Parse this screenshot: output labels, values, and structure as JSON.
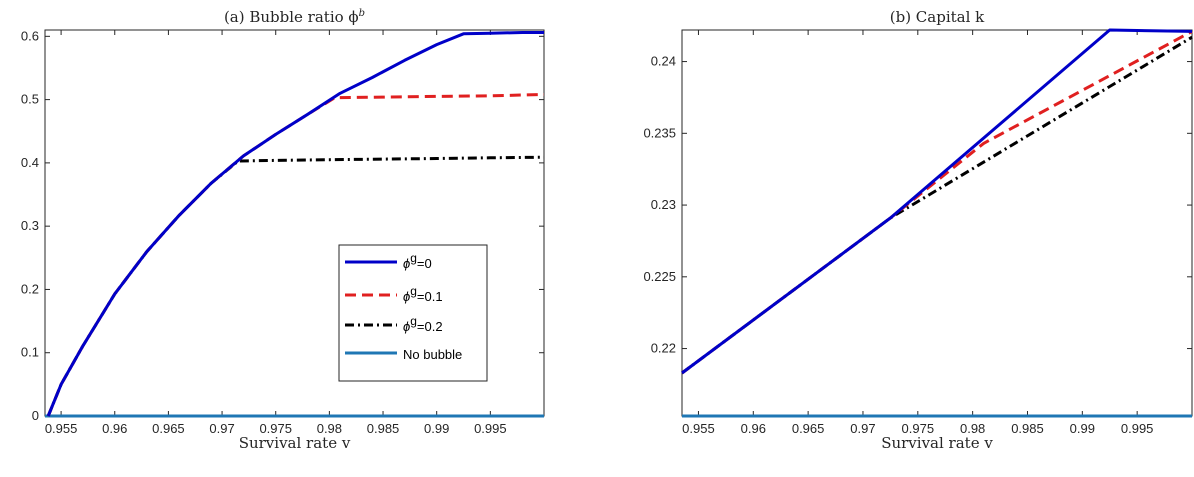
{
  "chart_data": [
    {
      "type": "line",
      "title": "(a) Bubble ratio ϕ",
      "title_sup": "b",
      "xlabel": "Survival rate v",
      "ylabel": "",
      "xlim": [
        0.9535,
        1.0
      ],
      "ylim": [
        0,
        0.61
      ],
      "xticks": [
        0.955,
        0.96,
        0.965,
        0.97,
        0.975,
        0.98,
        0.985,
        0.99,
        0.995
      ],
      "xtick_labels": [
        "0.955",
        "0.96",
        "0.965",
        "0.97",
        "0.975",
        "0.98",
        "0.985",
        "0.99",
        "0.995"
      ],
      "yticks": [
        0,
        0.1,
        0.2,
        0.3,
        0.4,
        0.5,
        0.6
      ],
      "ytick_labels": [
        "0",
        "0.1",
        "0.2",
        "0.3",
        "0.4",
        "0.5",
        "0.6"
      ],
      "legend_position": "inside-right",
      "series": [
        {
          "name": "ϕ",
          "sup": "g",
          "suffix": "=0",
          "color": "#0000c8",
          "style": "solid",
          "x": [
            0.9538,
            0.955,
            0.957,
            0.96,
            0.963,
            0.966,
            0.969,
            0.972,
            0.975,
            0.978,
            0.981,
            0.984,
            0.987,
            0.99,
            0.9925,
            0.995,
            0.998,
            1.0
          ],
          "y": [
            0.0,
            0.05,
            0.11,
            0.193,
            0.26,
            0.317,
            0.368,
            0.411,
            0.445,
            0.477,
            0.51,
            0.535,
            0.562,
            0.587,
            0.604,
            0.605,
            0.606,
            0.606
          ]
        },
        {
          "name": "ϕ",
          "sup": "g",
          "suffix": "=0.1",
          "color": "#e02020",
          "style": "dashed",
          "x": [
            0.9538,
            0.955,
            0.957,
            0.96,
            0.963,
            0.966,
            0.969,
            0.972,
            0.975,
            0.978,
            0.9805,
            0.985,
            0.99,
            0.995,
            1.0
          ],
          "y": [
            0.0,
            0.05,
            0.11,
            0.193,
            0.26,
            0.317,
            0.368,
            0.411,
            0.445,
            0.477,
            0.503,
            0.504,
            0.505,
            0.506,
            0.508
          ]
        },
        {
          "name": "ϕ",
          "sup": "g",
          "suffix": "=0.2",
          "color": "#000000",
          "style": "dashdot",
          "x": [
            0.9538,
            0.955,
            0.957,
            0.96,
            0.963,
            0.966,
            0.969,
            0.9715,
            0.975,
            0.98,
            0.985,
            0.99,
            0.995,
            1.0
          ],
          "y": [
            0.0,
            0.05,
            0.11,
            0.193,
            0.26,
            0.317,
            0.368,
            0.403,
            0.404,
            0.405,
            0.406,
            0.407,
            0.408,
            0.409
          ]
        },
        {
          "name": "No bubble",
          "color": "#1f77b4",
          "style": "solid",
          "x": [
            0.9535,
            1.0
          ],
          "y": [
            0.0,
            0.0
          ]
        }
      ]
    },
    {
      "type": "line",
      "title": "(b) Capital k",
      "xlabel": "Survival rate v",
      "ylabel": "",
      "xlim": [
        0.9535,
        1.0
      ],
      "ylim": [
        0.2153,
        0.2422
      ],
      "xticks": [
        0.955,
        0.96,
        0.965,
        0.97,
        0.975,
        0.98,
        0.985,
        0.99,
        0.995
      ],
      "xtick_labels": [
        "0.955",
        "0.96",
        "0.965",
        "0.97",
        "0.975",
        "0.98",
        "0.985",
        "0.99",
        "0.995"
      ],
      "yticks": [
        0.22,
        0.225,
        0.23,
        0.235,
        0.24
      ],
      "ytick_labels": [
        "0.22",
        "0.225",
        "0.23",
        "0.235",
        "0.24"
      ],
      "series": [
        {
          "name": "ϕg=0",
          "color": "#0000c8",
          "style": "solid",
          "x": [
            0.9535,
            0.9725,
            0.9925,
            1.0
          ],
          "y": [
            0.2183,
            0.2291,
            0.2422,
            0.2421
          ]
        },
        {
          "name": "ϕg=0.1",
          "color": "#e02020",
          "style": "dashed",
          "x": [
            0.9535,
            0.9725,
            0.981,
            1.0
          ],
          "y": [
            0.2183,
            0.2291,
            0.2343,
            0.2421
          ]
        },
        {
          "name": "ϕg=0.2",
          "color": "#000000",
          "style": "dashdot",
          "x": [
            0.9535,
            0.9725,
            1.0
          ],
          "y": [
            0.2183,
            0.2291,
            0.2417
          ]
        },
        {
          "name": "No bubble",
          "color": "#1f77b4",
          "style": "solid",
          "x": [
            0.9535,
            1.0
          ],
          "y": [
            0.2153,
            0.2153
          ]
        }
      ]
    }
  ]
}
